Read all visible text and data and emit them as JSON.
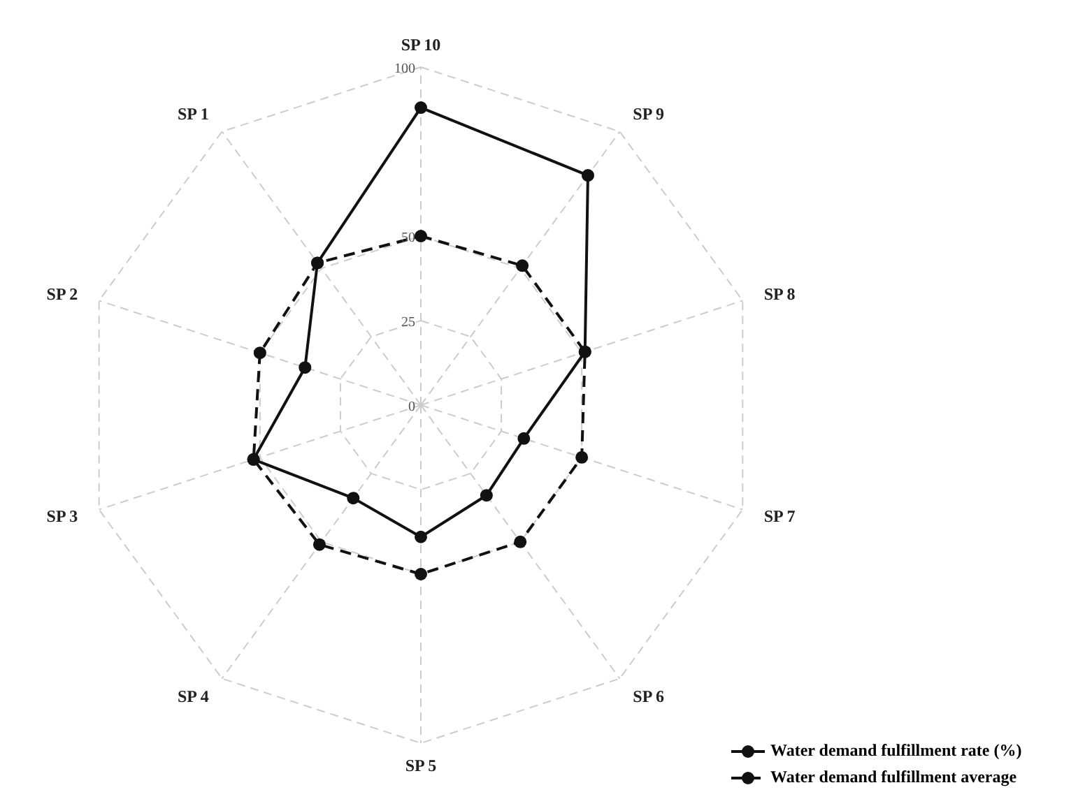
{
  "chart_data": {
    "type": "radar",
    "categories": [
      "SP 10",
      "SP 9",
      "SP 8",
      "SP 7",
      "SP 6",
      "SP 5",
      "SP 4",
      "SP 3",
      "SP 2",
      "SP 1"
    ],
    "series": [
      {
        "name": "Water demand fulfillment rate (%)",
        "color": "#111111",
        "line_style": "solid",
        "values": [
          88,
          84,
          51,
          32,
          33,
          39,
          34,
          52,
          36,
          52
        ]
      },
      {
        "name": "Water demand fulfillment average",
        "color": "#111111",
        "line_style": "dashed",
        "values": [
          50,
          51,
          51,
          50,
          50,
          50,
          51,
          52,
          50,
          52
        ]
      }
    ],
    "ylim": [
      0,
      100
    ],
    "yticks": [
      0,
      25,
      50,
      100
    ],
    "grid": true,
    "legend": "bottom right",
    "marker": "circle"
  }
}
